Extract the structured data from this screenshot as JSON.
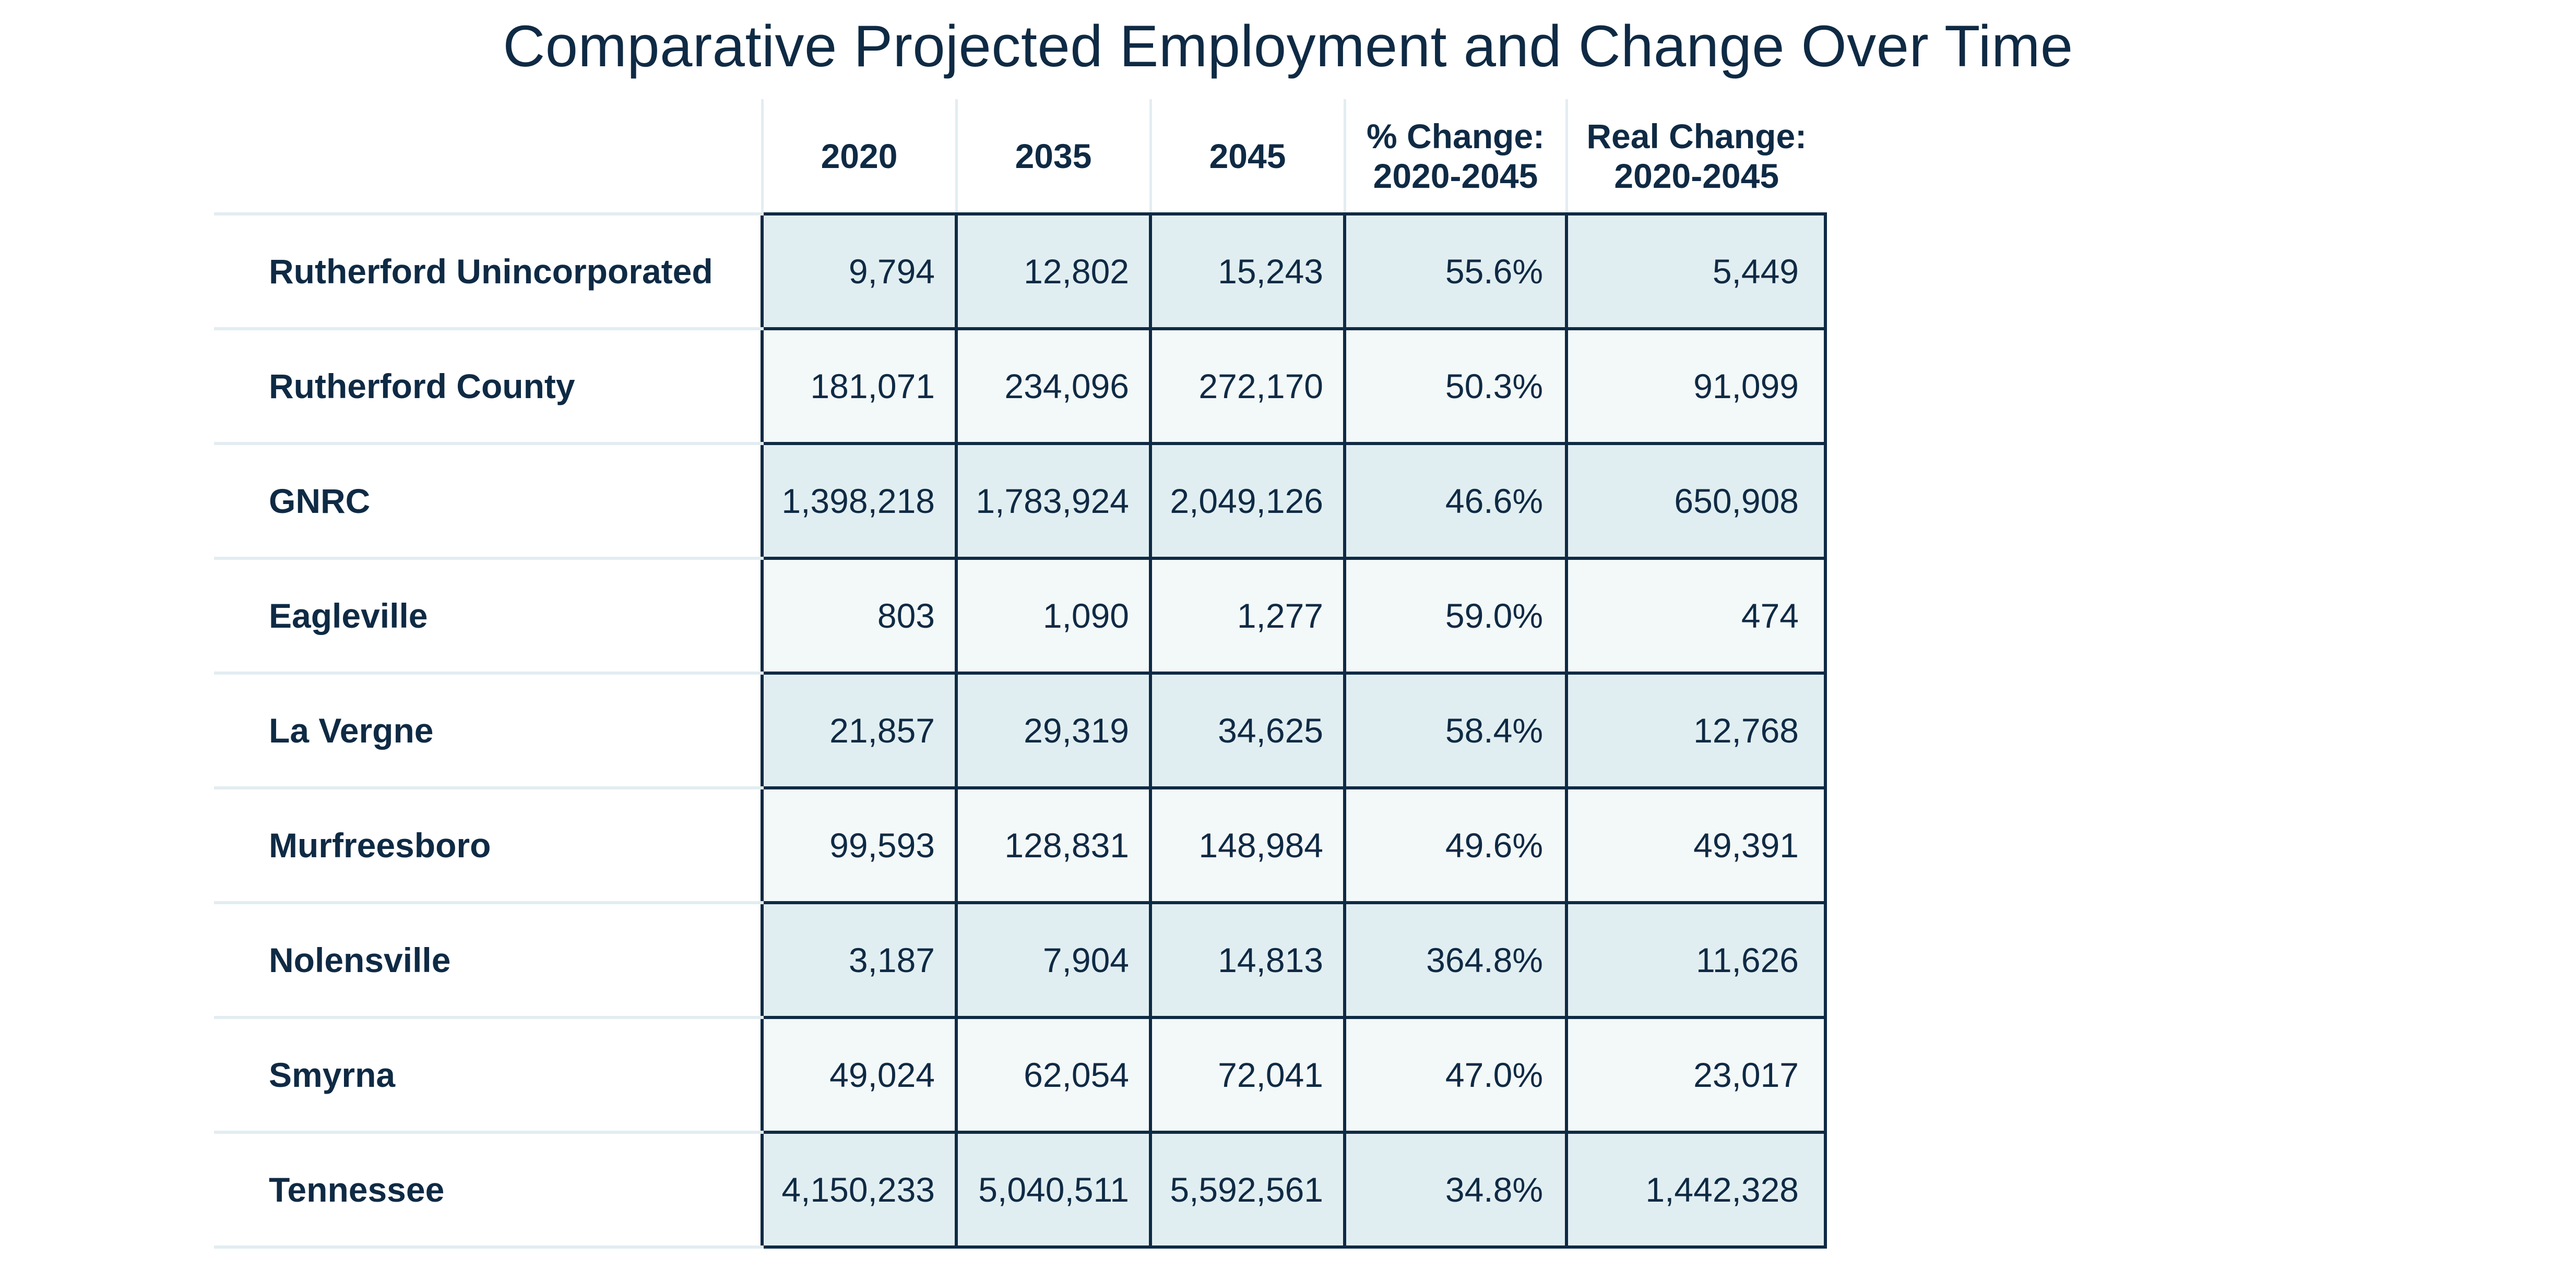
{
  "title": "Comparative Projected Employment and Change Over Time",
  "columns": [
    "2020",
    "2035",
    "2045",
    "% Change:\n2020-2045",
    "Real Change:\n2020-2045"
  ],
  "rows": [
    {
      "name": "Rutherford Unincorporated",
      "v2020": "9,794",
      "v2035": "12,802",
      "v2045": "15,243",
      "pct": "55.6%",
      "real": "5,449"
    },
    {
      "name": "Rutherford County",
      "v2020": "181,071",
      "v2035": "234,096",
      "v2045": "272,170",
      "pct": "50.3%",
      "real": "91,099"
    },
    {
      "name": "GNRC",
      "v2020": "1,398,218",
      "v2035": "1,783,924",
      "v2045": "2,049,126",
      "pct": "46.6%",
      "real": "650,908"
    },
    {
      "name": "Eagleville",
      "v2020": "803",
      "v2035": "1,090",
      "v2045": "1,277",
      "pct": "59.0%",
      "real": "474"
    },
    {
      "name": "La Vergne",
      "v2020": "21,857",
      "v2035": "29,319",
      "v2045": "34,625",
      "pct": "58.4%",
      "real": "12,768"
    },
    {
      "name": "Murfreesboro",
      "v2020": "99,593",
      "v2035": "128,831",
      "v2045": "148,984",
      "pct": "49.6%",
      "real": "49,391"
    },
    {
      "name": "Nolensville",
      "v2020": "3,187",
      "v2035": "7,904",
      "v2045": "14,813",
      "pct": "364.8%",
      "real": "11,626"
    },
    {
      "name": "Smyrna",
      "v2020": "49,024",
      "v2035": "62,054",
      "v2045": "72,041",
      "pct": "47.0%",
      "real": "23,017"
    },
    {
      "name": "Tennessee",
      "v2020": "4,150,233",
      "v2035": "5,040,511",
      "v2045": "5,592,561",
      "pct": "34.8%",
      "real": "1,442,328"
    }
  ],
  "colors": {
    "text": "#0f2a44",
    "border": "#0f2a44",
    "row_shade": "#e1eef1",
    "row_light": "#f3f8f8",
    "divider": "#e3edf1"
  },
  "chart_data": {
    "type": "table",
    "title": "Comparative Projected Employment and Change Over Time",
    "columns": [
      "",
      "2020",
      "2035",
      "2045",
      "% Change: 2020-2045",
      "Real Change: 2020-2045"
    ],
    "rows": [
      [
        "Rutherford Unincorporated",
        9794,
        12802,
        15243,
        55.6,
        5449
      ],
      [
        "Rutherford County",
        181071,
        234096,
        272170,
        50.3,
        91099
      ],
      [
        "GNRC",
        1398218,
        1783924,
        2049126,
        46.6,
        650908
      ],
      [
        "Eagleville",
        803,
        1090,
        1277,
        59.0,
        474
      ],
      [
        "La Vergne",
        21857,
        29319,
        34625,
        58.4,
        12768
      ],
      [
        "Murfreesboro",
        99593,
        128831,
        148984,
        49.6,
        49391
      ],
      [
        "Nolensville",
        3187,
        7904,
        14813,
        364.8,
        11626
      ],
      [
        "Smyrna",
        49024,
        62054,
        72041,
        47.0,
        23017
      ],
      [
        "Tennessee",
        4150233,
        5040511,
        5592561,
        34.8,
        1442328
      ]
    ]
  }
}
